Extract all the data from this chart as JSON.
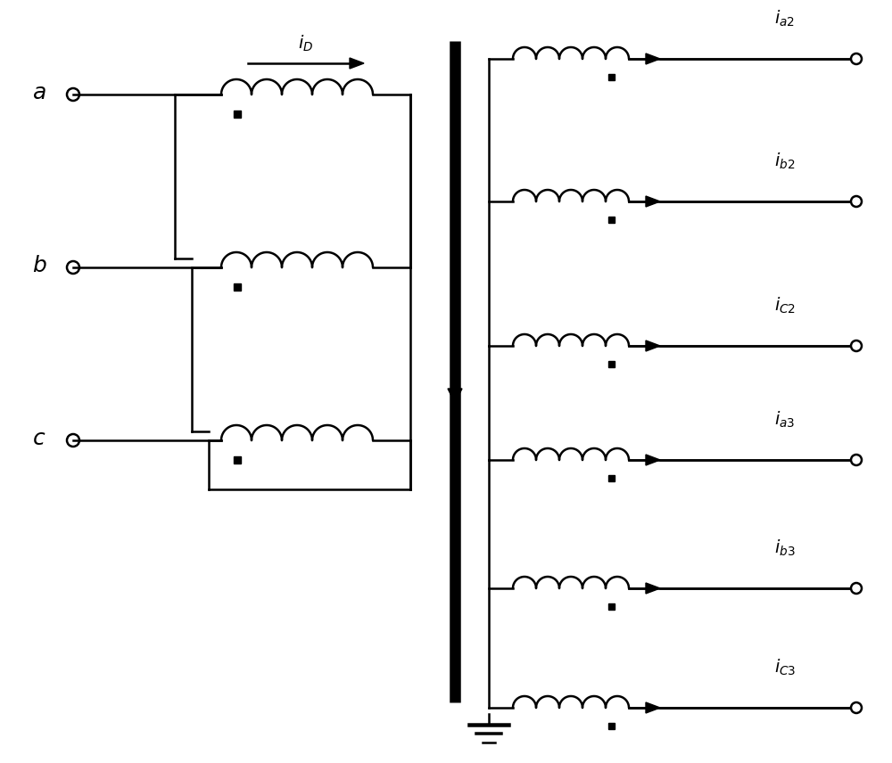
{
  "background": "#ffffff",
  "line_color": "#000000",
  "line_width": 1.5,
  "fig_width": 10.0,
  "fig_height": 8.56
}
